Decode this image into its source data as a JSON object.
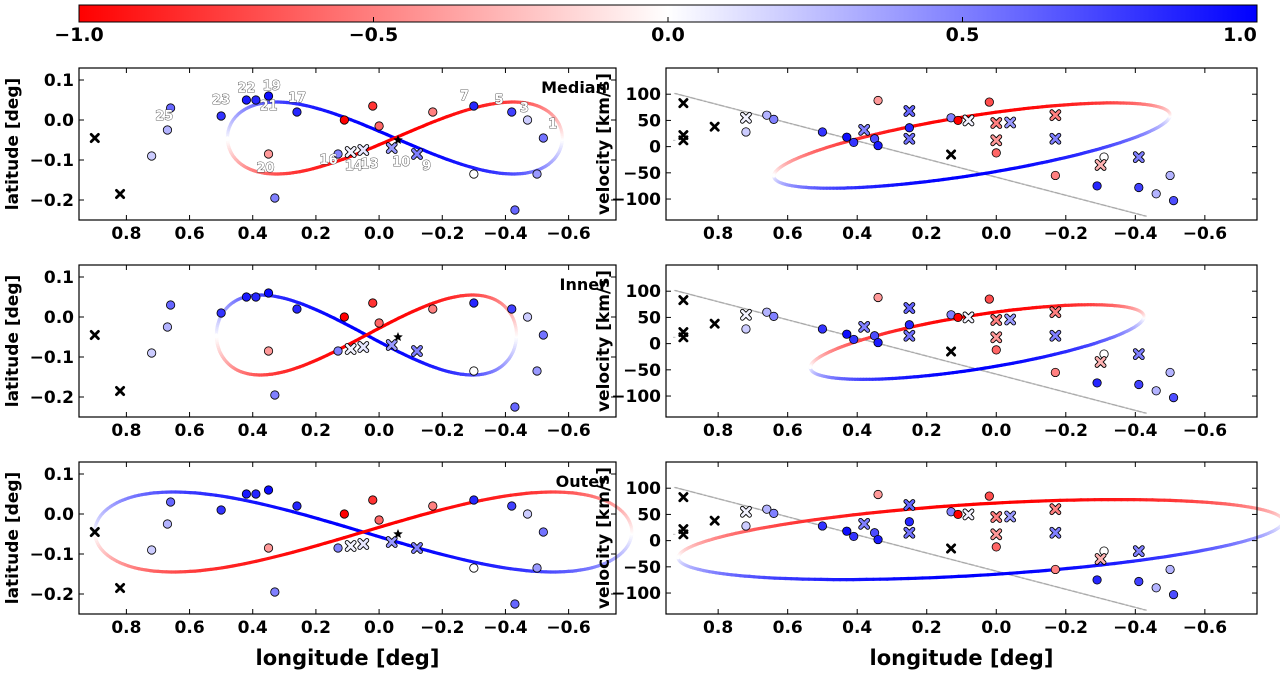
{
  "colorbar": {
    "ticks": [
      "−1.0",
      "−0.5",
      "0.0",
      "0.5",
      "1.0"
    ],
    "tick_values": [
      -1.0,
      -0.5,
      0.0,
      0.5,
      1.0
    ],
    "range": [
      -1.0,
      1.0
    ],
    "colors": {
      "low": "#ff0000",
      "mid": "#ffffff",
      "high": "#0000ff"
    }
  },
  "chart_data": [
    {
      "id": "lb-median",
      "type": "scatter",
      "title": "Median",
      "xlabel": "",
      "ylabel": "latitude [deg]",
      "xlim": [
        0.95,
        -0.75
      ],
      "ylim": [
        -0.25,
        0.13
      ],
      "xticks": [
        0.8,
        0.6,
        0.4,
        0.2,
        0.0,
        -0.2,
        -0.4,
        -0.6
      ],
      "xtick_labels": [
        "0.8",
        "0.6",
        "0.4",
        "0.2",
        "0.0",
        "−0.2",
        "−0.4",
        "−0.6"
      ],
      "yticks": [
        0.1,
        0.0,
        -0.1,
        -0.2
      ],
      "ytick_labels": [
        "0.1",
        "0.0",
        "−0.1",
        "−0.2"
      ],
      "orbit": {
        "l0": -0.05,
        "a": 0.53,
        "b0": -0.045,
        "bamp": 0.09
      },
      "annotations": [
        {
          "text": "25",
          "l": 0.68,
          "b": 0.0
        },
        {
          "text": "23",
          "l": 0.5,
          "b": 0.04
        },
        {
          "text": "22",
          "l": 0.42,
          "b": 0.07
        },
        {
          "text": "19",
          "l": 0.34,
          "b": 0.075
        },
        {
          "text": "21",
          "l": 0.35,
          "b": 0.025
        },
        {
          "text": "17",
          "l": 0.26,
          "b": 0.045
        },
        {
          "text": "20",
          "l": 0.36,
          "b": -0.13
        },
        {
          "text": "16",
          "l": 0.16,
          "b": -0.11
        },
        {
          "text": "14",
          "l": 0.08,
          "b": -0.125
        },
        {
          "text": "13",
          "l": 0.03,
          "b": -0.12
        },
        {
          "text": "10",
          "l": -0.07,
          "b": -0.115
        },
        {
          "text": "9",
          "l": -0.15,
          "b": -0.125
        },
        {
          "text": "7",
          "l": -0.27,
          "b": 0.05
        },
        {
          "text": "5",
          "l": -0.38,
          "b": 0.04
        },
        {
          "text": "3",
          "l": -0.46,
          "b": 0.02
        },
        {
          "text": "1",
          "l": -0.55,
          "b": -0.02
        }
      ]
    },
    {
      "id": "lv-median",
      "type": "scatter",
      "title": "",
      "xlabel": "",
      "ylabel": "velocity [km/s]",
      "xlim": [
        0.95,
        -0.75
      ],
      "ylim": [
        -140,
        150
      ],
      "xticks": [
        0.8,
        0.6,
        0.4,
        0.2,
        0.0,
        -0.2,
        -0.4,
        -0.6
      ],
      "xtick_labels": [
        "0.8",
        "0.6",
        "0.4",
        "0.2",
        "0.0",
        "−0.2",
        "−0.4",
        "−0.6"
      ],
      "yticks": [
        100,
        50,
        0,
        -50,
        -100
      ],
      "ytick_labels": [
        "100",
        "50",
        "0",
        "−50",
        "−100"
      ],
      "orbit": {
        "l0": 0.07,
        "a": 0.57,
        "v0": 2,
        "vamp": 57,
        "tilt": 0.6
      }
    },
    {
      "id": "lb-inner",
      "type": "scatter",
      "title": "Inner",
      "xlabel": "",
      "ylabel": "latitude [deg]",
      "xlim": [
        0.95,
        -0.75
      ],
      "ylim": [
        -0.25,
        0.13
      ],
      "xticks": [
        0.8,
        0.6,
        0.4,
        0.2,
        0.0,
        -0.2,
        -0.4,
        -0.6
      ],
      "xtick_labels": [
        "0.8",
        "0.6",
        "0.4",
        "0.2",
        "0.0",
        "−0.2",
        "−0.4",
        "−0.6"
      ],
      "yticks": [
        0.1,
        0.0,
        -0.1,
        -0.2
      ],
      "ytick_labels": [
        "0.1",
        "0.0",
        "−0.1",
        "−0.2"
      ],
      "orbit": {
        "l0": 0.04,
        "a": 0.475,
        "b0": -0.045,
        "bamp": 0.1
      }
    },
    {
      "id": "lv-inner",
      "type": "scatter",
      "title": "",
      "xlabel": "",
      "ylabel": "velocity [km/s]",
      "xlim": [
        0.95,
        -0.75
      ],
      "ylim": [
        -140,
        150
      ],
      "xticks": [
        0.8,
        0.6,
        0.4,
        0.2,
        0.0,
        -0.2,
        -0.4,
        -0.6
      ],
      "xtick_labels": [
        "0.8",
        "0.6",
        "0.4",
        "0.2",
        "0.0",
        "−0.2",
        "−0.4",
        "−0.6"
      ],
      "yticks": [
        100,
        50,
        0,
        -50,
        -100
      ],
      "ytick_labels": [
        "100",
        "50",
        "0",
        "−50",
        "−100"
      ],
      "orbit": {
        "l0": 0.055,
        "a": 0.48,
        "v0": 3,
        "vamp": 52,
        "tilt": 0.55
      }
    },
    {
      "id": "lb-outer",
      "type": "scatter",
      "title": "Outer",
      "xlabel": "longitude [deg]",
      "ylabel": "latitude [deg]",
      "xlim": [
        0.95,
        -0.75
      ],
      "ylim": [
        -0.25,
        0.13
      ],
      "xticks": [
        0.8,
        0.6,
        0.4,
        0.2,
        0.0,
        -0.2,
        -0.4,
        -0.6
      ],
      "xtick_labels": [
        "0.8",
        "0.6",
        "0.4",
        "0.2",
        "0.0",
        "−0.2",
        "−0.4",
        "−0.6"
      ],
      "yticks": [
        0.1,
        0.0,
        -0.1,
        -0.2
      ],
      "ytick_labels": [
        "0.1",
        "0.0",
        "−0.1",
        "−0.2"
      ],
      "orbit": {
        "l0": 0.05,
        "a": 0.85,
        "b0": -0.045,
        "bamp": 0.1
      }
    },
    {
      "id": "lv-outer",
      "type": "scatter",
      "title": "",
      "xlabel": "longitude [deg]",
      "ylabel": "velocity [km/s]",
      "xlim": [
        0.95,
        -0.75
      ],
      "ylim": [
        -140,
        150
      ],
      "xticks": [
        0.8,
        0.6,
        0.4,
        0.2,
        0.0,
        -0.2,
        -0.4,
        -0.6
      ],
      "xtick_labels": [
        "0.8",
        "0.6",
        "0.4",
        "0.2",
        "0.0",
        "−0.2",
        "−0.4",
        "−0.6"
      ],
      "yticks": [
        100,
        50,
        0,
        -50,
        -100
      ],
      "ytick_labels": [
        "100",
        "50",
        "0",
        "−50",
        "−100"
      ],
      "orbit": {
        "l0": 0.045,
        "a": 0.87,
        "v0": 2,
        "vamp": 68,
        "tilt": 0.3
      }
    }
  ],
  "lb_points": [
    {
      "l": 0.66,
      "b": 0.03,
      "c": 0.6,
      "m": "o"
    },
    {
      "l": 0.67,
      "b": -0.025,
      "c": 0.3,
      "m": "o"
    },
    {
      "l": 0.72,
      "b": -0.09,
      "c": 0.2,
      "m": "o"
    },
    {
      "l": 0.5,
      "b": 0.01,
      "c": 0.8,
      "m": "o"
    },
    {
      "l": 0.42,
      "b": 0.05,
      "c": 0.9,
      "m": "o"
    },
    {
      "l": 0.39,
      "b": 0.05,
      "c": 0.85,
      "m": "o"
    },
    {
      "l": 0.35,
      "b": 0.06,
      "c": 0.95,
      "m": "o"
    },
    {
      "l": 0.26,
      "b": 0.02,
      "c": 0.85,
      "m": "o"
    },
    {
      "l": 0.35,
      "b": -0.085,
      "c": -0.4,
      "m": "o"
    },
    {
      "l": 0.33,
      "b": -0.195,
      "c": 0.5,
      "m": "o"
    },
    {
      "l": 0.13,
      "b": -0.085,
      "c": 0.5,
      "m": "o"
    },
    {
      "l": 0.11,
      "b": 0.0,
      "c": -1.0,
      "m": "o"
    },
    {
      "l": 0.02,
      "b": 0.035,
      "c": -0.8,
      "m": "o"
    },
    {
      "l": 0.0,
      "b": -0.015,
      "c": -0.6,
      "m": "o"
    },
    {
      "l": -0.17,
      "b": 0.02,
      "c": -0.5,
      "m": "o"
    },
    {
      "l": -0.3,
      "b": 0.035,
      "c": 0.85,
      "m": "o"
    },
    {
      "l": -0.3,
      "b": -0.135,
      "c": 0.0,
      "m": "o"
    },
    {
      "l": -0.42,
      "b": 0.02,
      "c": 0.75,
      "m": "o"
    },
    {
      "l": -0.47,
      "b": 0.0,
      "c": 0.2,
      "m": "o"
    },
    {
      "l": -0.52,
      "b": -0.045,
      "c": 0.55,
      "m": "o"
    },
    {
      "l": -0.5,
      "b": -0.135,
      "c": 0.4,
      "m": "o"
    },
    {
      "l": -0.43,
      "b": -0.225,
      "c": 0.6,
      "m": "o"
    },
    {
      "l": 0.9,
      "b": -0.045,
      "c": null,
      "m": "x"
    },
    {
      "l": 0.82,
      "b": -0.185,
      "c": null,
      "m": "x"
    },
    {
      "l": 0.09,
      "b": -0.08,
      "c": 0.05,
      "m": "x"
    },
    {
      "l": 0.05,
      "b": -0.075,
      "c": 0.1,
      "m": "x"
    },
    {
      "l": -0.04,
      "b": -0.07,
      "c": 0.4,
      "m": "x"
    },
    {
      "l": -0.12,
      "b": -0.085,
      "c": 0.5,
      "m": "x"
    },
    {
      "l": -0.06,
      "b": -0.05,
      "c": null,
      "m": "*"
    }
  ],
  "lv_points": [
    {
      "l": 0.72,
      "v": 28,
      "c": 0.2,
      "m": "o"
    },
    {
      "l": 0.66,
      "v": 60,
      "c": 0.3,
      "m": "o"
    },
    {
      "l": 0.64,
      "v": 52,
      "c": 0.5,
      "m": "o"
    },
    {
      "l": 0.5,
      "v": 28,
      "c": 0.8,
      "m": "o"
    },
    {
      "l": 0.43,
      "v": 18,
      "c": 0.95,
      "m": "o"
    },
    {
      "l": 0.41,
      "v": 8,
      "c": 0.8,
      "m": "o"
    },
    {
      "l": 0.35,
      "v": 15,
      "c": 0.7,
      "m": "o"
    },
    {
      "l": 0.34,
      "v": 88,
      "c": -0.4,
      "m": "o"
    },
    {
      "l": 0.34,
      "v": 2,
      "c": 0.9,
      "m": "o"
    },
    {
      "l": 0.25,
      "v": 36,
      "c": 0.85,
      "m": "o"
    },
    {
      "l": 0.13,
      "v": 55,
      "c": 0.5,
      "m": "o"
    },
    {
      "l": 0.11,
      "v": 50,
      "c": -1.0,
      "m": "o"
    },
    {
      "l": 0.02,
      "v": 85,
      "c": -0.7,
      "m": "o"
    },
    {
      "l": 0.0,
      "v": -12,
      "c": -0.6,
      "m": "o"
    },
    {
      "l": -0.17,
      "v": -55,
      "c": -0.5,
      "m": "o"
    },
    {
      "l": -0.29,
      "v": -75,
      "c": 0.85,
      "m": "o"
    },
    {
      "l": -0.31,
      "v": -20,
      "c": 0.0,
      "m": "o"
    },
    {
      "l": -0.41,
      "v": -78,
      "c": 0.75,
      "m": "o"
    },
    {
      "l": -0.46,
      "v": -90,
      "c": 0.3,
      "m": "o"
    },
    {
      "l": -0.51,
      "v": -103,
      "c": 0.7,
      "m": "o"
    },
    {
      "l": -0.5,
      "v": -55,
      "c": 0.3,
      "m": "o"
    },
    {
      "l": 0.9,
      "v": 83,
      "c": null,
      "m": "x"
    },
    {
      "l": 0.9,
      "v": 22,
      "c": null,
      "m": "x"
    },
    {
      "l": 0.9,
      "v": 12,
      "c": null,
      "m": "x"
    },
    {
      "l": 0.81,
      "v": 38,
      "c": null,
      "m": "x"
    },
    {
      "l": 0.72,
      "v": 55,
      "c": 0.05,
      "m": "x"
    },
    {
      "l": 0.38,
      "v": 32,
      "c": 0.5,
      "m": "x"
    },
    {
      "l": 0.25,
      "v": 68,
      "c": 0.6,
      "m": "x"
    },
    {
      "l": 0.25,
      "v": 15,
      "c": 0.55,
      "m": "x"
    },
    {
      "l": 0.08,
      "v": 50,
      "c": 0.05,
      "m": "x"
    },
    {
      "l": 0.0,
      "v": 45,
      "c": -0.5,
      "m": "x"
    },
    {
      "l": 0.0,
      "v": 12,
      "c": -0.4,
      "m": "x"
    },
    {
      "l": -0.04,
      "v": 46,
      "c": 0.4,
      "m": "x"
    },
    {
      "l": -0.17,
      "v": 60,
      "c": -0.5,
      "m": "x"
    },
    {
      "l": -0.17,
      "v": 15,
      "c": 0.5,
      "m": "x"
    },
    {
      "l": -0.3,
      "v": -35,
      "c": -0.3,
      "m": "x"
    },
    {
      "l": -0.41,
      "v": -20,
      "c": 0.5,
      "m": "x"
    },
    {
      "l": 0.13,
      "v": -15,
      "c": null,
      "m": "x"
    }
  ]
}
